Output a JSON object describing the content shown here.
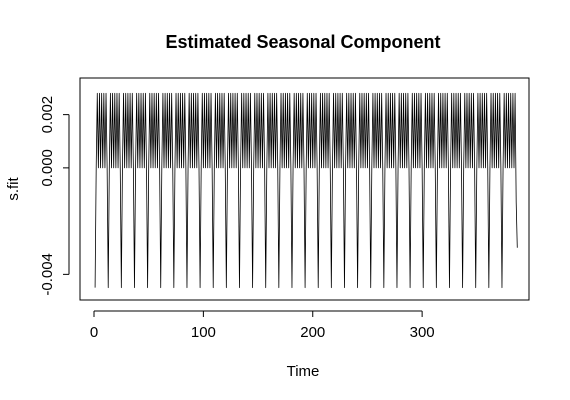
{
  "chart_data": {
    "type": "line",
    "title": "Estimated Seasonal Component",
    "subtitle": "",
    "xlabel": "Time",
    "ylabel": "s.fit",
    "xlim": [
      0,
      384
    ],
    "ylim": [
      -0.0047,
      0.003
    ],
    "x_ticks": [
      0,
      100,
      200,
      300
    ],
    "x_tick_labels": [
      "0",
      "100",
      "200",
      "300"
    ],
    "y_ticks": [
      -0.004,
      0.0,
      0.002
    ],
    "y_tick_labels": [
      "-0.004",
      "0.000",
      "0.002"
    ],
    "grid": false,
    "legend": "none",
    "colors": {
      "line": "#000000",
      "axes": "#000000",
      "background": "#ffffff"
    },
    "series": [
      {
        "period": 12,
        "cycles": 32,
        "pattern": [
          -0.0045,
          0.0,
          0.0028,
          0.0,
          0.0028,
          0.0,
          0.0028,
          0.0,
          0.0028,
          0.0,
          0.0028,
          0.0
        ],
        "end_values": [
          0.0028,
          -0.0013,
          -0.003
        ]
      }
    ]
  }
}
